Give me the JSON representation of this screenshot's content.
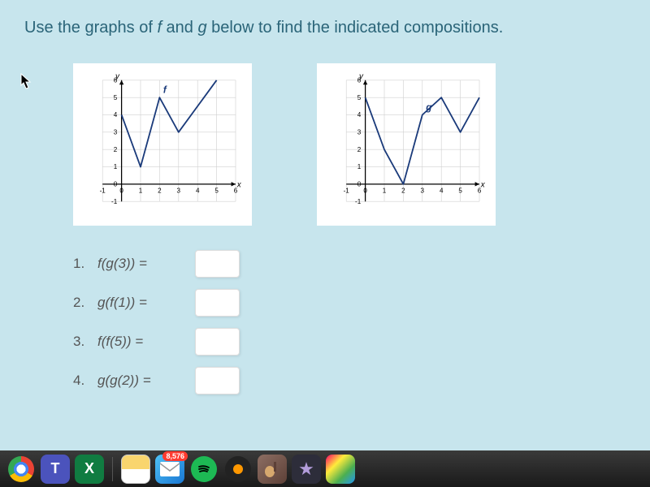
{
  "prompt": {
    "text_a": "Use the graphs of ",
    "fn_f": "f",
    "text_b": " and ",
    "fn_g": "g",
    "text_c": " below to find the indicated compositions."
  },
  "graph_f": {
    "label": "f",
    "xlabel": "x",
    "ylabel": "y",
    "xlim": [
      -1,
      6
    ],
    "ylim": [
      -1,
      6
    ],
    "xtick_labels": [
      "-1",
      "0",
      "1",
      "2",
      "3",
      "4",
      "5",
      "6"
    ],
    "ytick_labels": [
      "-1",
      "0",
      "1",
      "2",
      "3",
      "4",
      "5",
      "6"
    ],
    "points": [
      [
        0,
        4
      ],
      [
        1,
        1
      ],
      [
        2,
        5
      ],
      [
        3,
        3
      ],
      [
        5,
        6
      ]
    ],
    "line_color": "#1a3a7a",
    "line_width": 2,
    "bg_color": "#ffffff",
    "grid_color": "#d0d0d0",
    "axis_color": "#000000",
    "tick_fontsize": 9
  },
  "graph_g": {
    "label": "g",
    "xlabel": "x",
    "ylabel": "y",
    "xlim": [
      -1,
      6
    ],
    "ylim": [
      -1,
      6
    ],
    "xtick_labels": [
      "-1",
      "0",
      "1",
      "2",
      "3",
      "4",
      "5",
      "6"
    ],
    "ytick_labels": [
      "-1",
      "0",
      "1",
      "2",
      "3",
      "4",
      "5",
      "6"
    ],
    "points": [
      [
        0,
        5
      ],
      [
        1,
        2
      ],
      [
        2,
        0
      ],
      [
        3,
        4
      ],
      [
        4,
        5
      ],
      [
        5,
        3
      ],
      [
        6,
        5
      ]
    ],
    "line_color": "#1a3a7a",
    "line_width": 2,
    "bg_color": "#ffffff",
    "grid_color": "#d0d0d0",
    "axis_color": "#000000",
    "tick_fontsize": 9
  },
  "questions": [
    {
      "num": "1.",
      "expr": "f(g(3)) ="
    },
    {
      "num": "2.",
      "expr": "g(f(1)) ="
    },
    {
      "num": "3.",
      "expr": "f(f(5)) ="
    },
    {
      "num": "4.",
      "expr": "g(g(2)) ="
    }
  ],
  "dock": {
    "mail_badge": "8,576",
    "items": [
      {
        "name": "chrome",
        "label": ""
      },
      {
        "name": "teams",
        "label": "T"
      },
      {
        "name": "excel",
        "label": "X"
      },
      {
        "name": "notes",
        "label": ""
      },
      {
        "name": "mail",
        "label": "",
        "badge": "8,576"
      },
      {
        "name": "spotify",
        "label": ""
      },
      {
        "name": "garageband",
        "label": ""
      },
      {
        "name": "guitar",
        "label": ""
      },
      {
        "name": "imovie",
        "label": "★"
      },
      {
        "name": "photos",
        "label": ""
      }
    ]
  },
  "colors": {
    "content_bg": "#c7e5ed",
    "prompt_text": "#2a6478",
    "question_text": "#555555",
    "answer_box_bg": "#ffffff",
    "dock_bg": "#1a1a1a"
  }
}
